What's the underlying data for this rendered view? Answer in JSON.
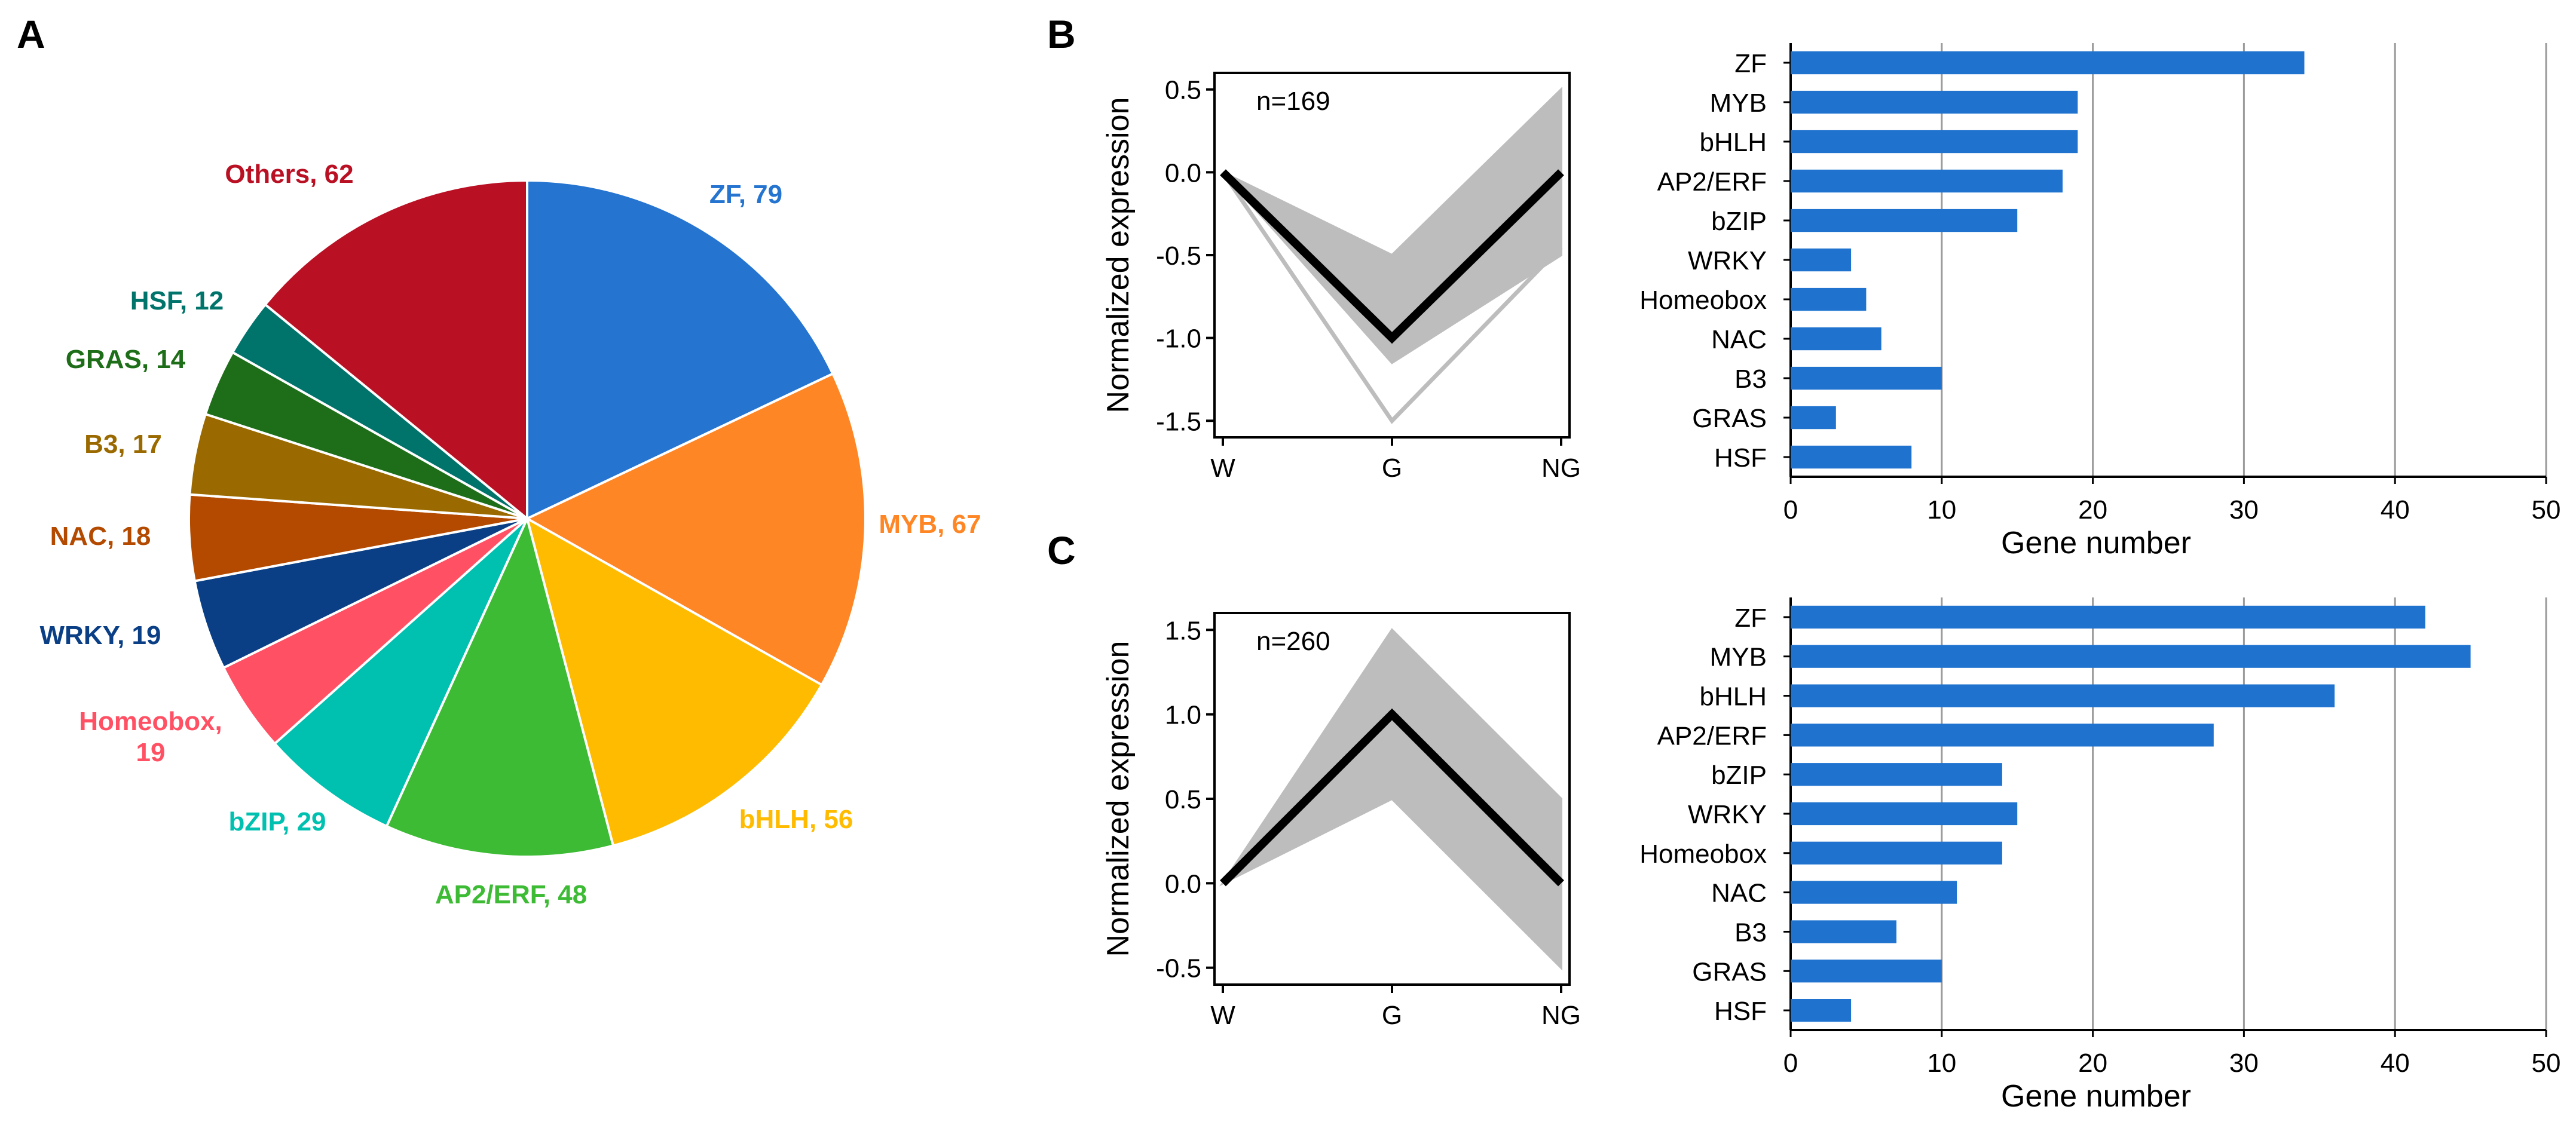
{
  "panel_labels": {
    "a": "A",
    "b": "B",
    "c": "C"
  },
  "colors": {
    "bar": "#1f73cf",
    "profile_gray": "#bdbdbd",
    "profile_mean": "#000000",
    "grid": "#9a9a9a"
  },
  "chart_data": [
    {
      "id": "A",
      "type": "pie",
      "title": "",
      "slices": [
        {
          "label": "ZF",
          "text": "ZF, 79",
          "value": 79,
          "color": "#2474d0"
        },
        {
          "label": "MYB",
          "text": "MYB, 67",
          "value": 67,
          "color": "#ff8624"
        },
        {
          "label": "bHLH",
          "text": "bHLH, 56",
          "value": 56,
          "color": "#ffbb00"
        },
        {
          "label": "AP2/ERF",
          "text": "AP2/ERF, 48",
          "value": 48,
          "color": "#3dbb35"
        },
        {
          "label": "bZIP",
          "text": "bZIP, 29",
          "value": 29,
          "color": "#00c0b0"
        },
        {
          "label": "Homeobox",
          "text": "Homeobox,",
          "text2": "19",
          "value": 19,
          "color": "#ff5064"
        },
        {
          "label": "WRKY",
          "text": "WRKY, 19",
          "value": 19,
          "color": "#0a3f86"
        },
        {
          "label": "NAC",
          "text": "NAC, 18",
          "value": 18,
          "color": "#b34a00"
        },
        {
          "label": "B3",
          "text": "B3, 17",
          "value": 17,
          "color": "#9a6a00"
        },
        {
          "label": "GRAS",
          "text": "GRAS, 14",
          "value": 14,
          "color": "#1e6e19"
        },
        {
          "label": "HSF",
          "text": "HSF, 12",
          "value": 12,
          "color": "#00736b"
        },
        {
          "label": "Others",
          "text": "Others, 62",
          "value": 62,
          "color": "#ba1024"
        }
      ]
    },
    {
      "id": "B-profile",
      "type": "line",
      "annotation": "n=169",
      "x": [
        "W",
        "G",
        "NG"
      ],
      "mean": [
        0,
        -1.0,
        0
      ],
      "band_upper": [
        0,
        -0.5,
        0.5
      ],
      "band_lower": [
        0,
        -1.15,
        -0.5
      ],
      "outliers": [
        [
          0,
          -1.5,
          -0.45
        ],
        [
          0,
          -1.12,
          -0.35
        ],
        [
          0,
          -1.05,
          -0.3
        ]
      ],
      "ylabel": "Normalized expression",
      "xlabel": "",
      "ylim": [
        -1.6,
        0.6
      ],
      "yticks": [
        "0.5",
        "0.0",
        "-0.5",
        "-1.0",
        "-1.5"
      ],
      "ytick_values": [
        0.5,
        0.0,
        -0.5,
        -1.0,
        -1.5
      ]
    },
    {
      "id": "B-bars",
      "type": "bar",
      "orientation": "horizontal",
      "categories": [
        "ZF",
        "MYB",
        "bHLH",
        "AP2/ERF",
        "bZIP",
        "WRKY",
        "Homeobox",
        "NAC",
        "B3",
        "GRAS",
        "HSF"
      ],
      "values": [
        34,
        19,
        19,
        18,
        15,
        4,
        5,
        6,
        10,
        3,
        8
      ],
      "xlabel": "Gene number",
      "xlim": [
        0,
        50
      ],
      "xticks": [
        "0",
        "10",
        "20",
        "30",
        "40",
        "50"
      ],
      "xtick_values": [
        0,
        10,
        20,
        30,
        40,
        50
      ],
      "grid": true
    },
    {
      "id": "C-profile",
      "type": "line",
      "annotation": "n=260",
      "x": [
        "W",
        "G",
        "NG"
      ],
      "mean": [
        0,
        1.0,
        0
      ],
      "band_upper": [
        0,
        1.5,
        0.5
      ],
      "band_lower": [
        0,
        0.5,
        -0.5
      ],
      "outliers": [],
      "ylabel": "Normalized expression",
      "xlabel": "",
      "ylim": [
        -0.6,
        1.6
      ],
      "yticks": [
        "1.5",
        "1.0",
        "0.5",
        "0.0",
        "-0.5"
      ],
      "ytick_values": [
        1.5,
        1.0,
        0.5,
        0.0,
        -0.5
      ]
    },
    {
      "id": "C-bars",
      "type": "bar",
      "orientation": "horizontal",
      "categories": [
        "ZF",
        "MYB",
        "bHLH",
        "AP2/ERF",
        "bZIP",
        "WRKY",
        "Homeobox",
        "NAC",
        "B3",
        "GRAS",
        "HSF"
      ],
      "values": [
        42,
        45,
        36,
        28,
        14,
        15,
        14,
        11,
        7,
        10,
        4
      ],
      "xlabel": "Gene number",
      "xlim": [
        0,
        50
      ],
      "xticks": [
        "0",
        "10",
        "20",
        "30",
        "40",
        "50"
      ],
      "xtick_values": [
        0,
        10,
        20,
        30,
        40,
        50
      ],
      "grid": true
    }
  ]
}
